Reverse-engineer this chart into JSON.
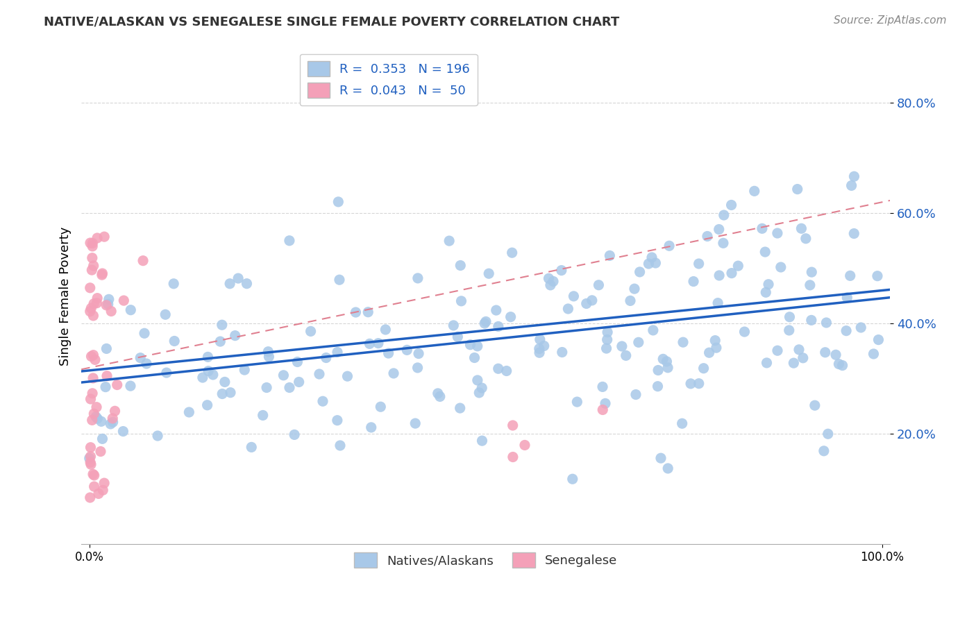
{
  "title": "NATIVE/ALASKAN VS SENEGALESE SINGLE FEMALE POVERTY CORRELATION CHART",
  "source": "Source: ZipAtlas.com",
  "ylabel": "Single Female Poverty",
  "xlim": [
    0.0,
    1.0
  ],
  "ylim": [
    0.0,
    0.9
  ],
  "yticks": [
    0.2,
    0.4,
    0.6,
    0.8
  ],
  "ytick_labels": [
    "20.0%",
    "40.0%",
    "60.0%",
    "80.0%"
  ],
  "blue_R": 0.353,
  "blue_N": 196,
  "pink_R": 0.043,
  "pink_N": 50,
  "blue_color": "#A8C8E8",
  "pink_color": "#F4A0B8",
  "blue_line_color": "#2060C0",
  "pink_line_color": "#E08090",
  "background_color": "#FFFFFF",
  "grid_color": "#CCCCCC",
  "blue_seed": 12345,
  "pink_seed": 67890
}
